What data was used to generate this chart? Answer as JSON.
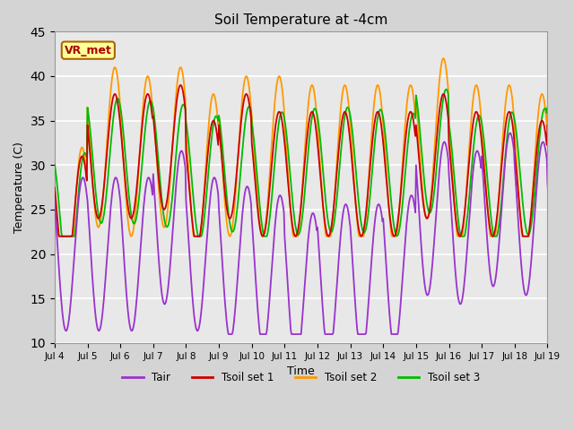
{
  "title": "Soil Temperature at -4cm",
  "xlabel": "Time",
  "ylabel": "Temperature (C)",
  "xlim": [
    0,
    360
  ],
  "ylim": [
    10,
    45
  ],
  "yticks": [
    10,
    15,
    20,
    25,
    30,
    35,
    40,
    45
  ],
  "xtick_labels": [
    "Jul 4",
    "Jul 5",
    "Jul 6",
    "Jul 7",
    "Jul 8",
    "Jul 9",
    "Jul 10",
    "Jul 11",
    "Jul 12",
    "Jul 13",
    "Jul 14",
    "Jul 15",
    "Jul 16",
    "Jul 17",
    "Jul 18",
    "Jul 19"
  ],
  "xtick_positions": [
    0,
    24,
    48,
    72,
    96,
    120,
    144,
    168,
    192,
    216,
    240,
    264,
    288,
    312,
    336,
    360
  ],
  "fig_bg": "#d4d4d4",
  "plot_bg": "#e8e8e8",
  "grid_color": "#ffffff",
  "colors": {
    "Tair": "#9933cc",
    "Tsoil1": "#cc0000",
    "Tsoil2": "#ff9900",
    "Tsoil3": "#00bb00"
  },
  "legend_label": "VR_met",
  "ann_bg": "#ffff99",
  "ann_text_color": "#aa0000",
  "ann_edge_color": "#aa6600"
}
